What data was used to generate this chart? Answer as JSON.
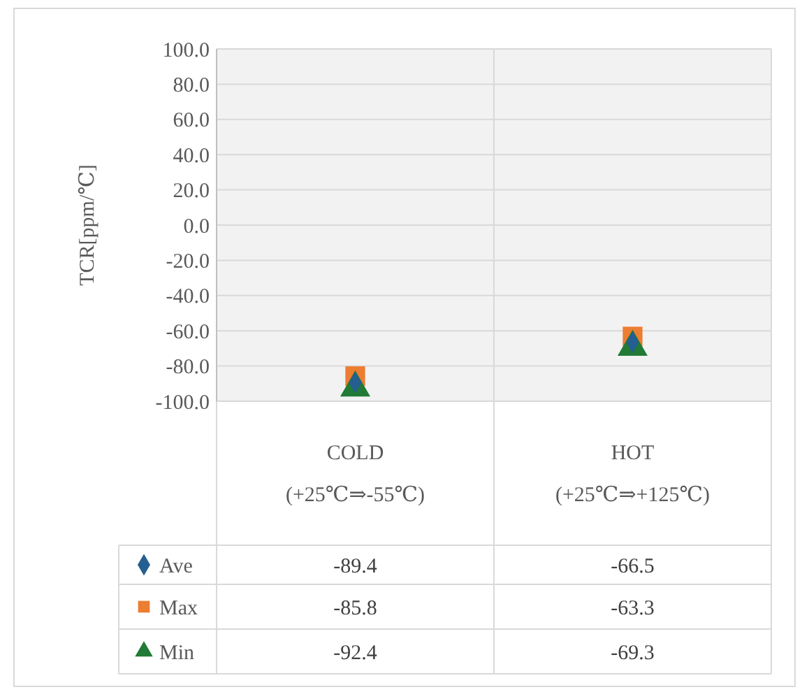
{
  "chart_data": {
    "type": "scatter",
    "ylabel": "TCR[ppm/℃]",
    "categories": [
      "COLD\n(+25℃⇒-55℃)",
      "HOT\n(+25℃⇒+125℃)"
    ],
    "series": [
      {
        "name": "Ave",
        "color": "#255e91",
        "marker": "diamond",
        "values": [
          -89.4,
          -66.5
        ]
      },
      {
        "name": "Max",
        "color": "#ed7d31",
        "marker": "square",
        "values": [
          -85.8,
          -63.3
        ]
      },
      {
        "name": "Min",
        "color": "#217a35",
        "marker": "triangle",
        "values": [
          -92.4,
          -69.3
        ]
      }
    ],
    "ylim": [
      -100,
      100
    ],
    "yticks": [
      {
        "value": 100,
        "label": "100.0"
      },
      {
        "value": 80,
        "label": "80.0"
      },
      {
        "value": 60,
        "label": "60.0"
      },
      {
        "value": 40,
        "label": "40.0"
      },
      {
        "value": 20,
        "label": "20.0"
      },
      {
        "value": 0,
        "label": "0.0"
      },
      {
        "value": -20,
        "label": "-20.0"
      },
      {
        "value": -40,
        "label": "-40.0"
      },
      {
        "value": -60,
        "label": "-60.0"
      },
      {
        "value": -80,
        "label": "-80.0"
      },
      {
        "value": -100,
        "label": "-100.0"
      }
    ],
    "grid": true,
    "data_labels": true,
    "legend": "bottom"
  }
}
